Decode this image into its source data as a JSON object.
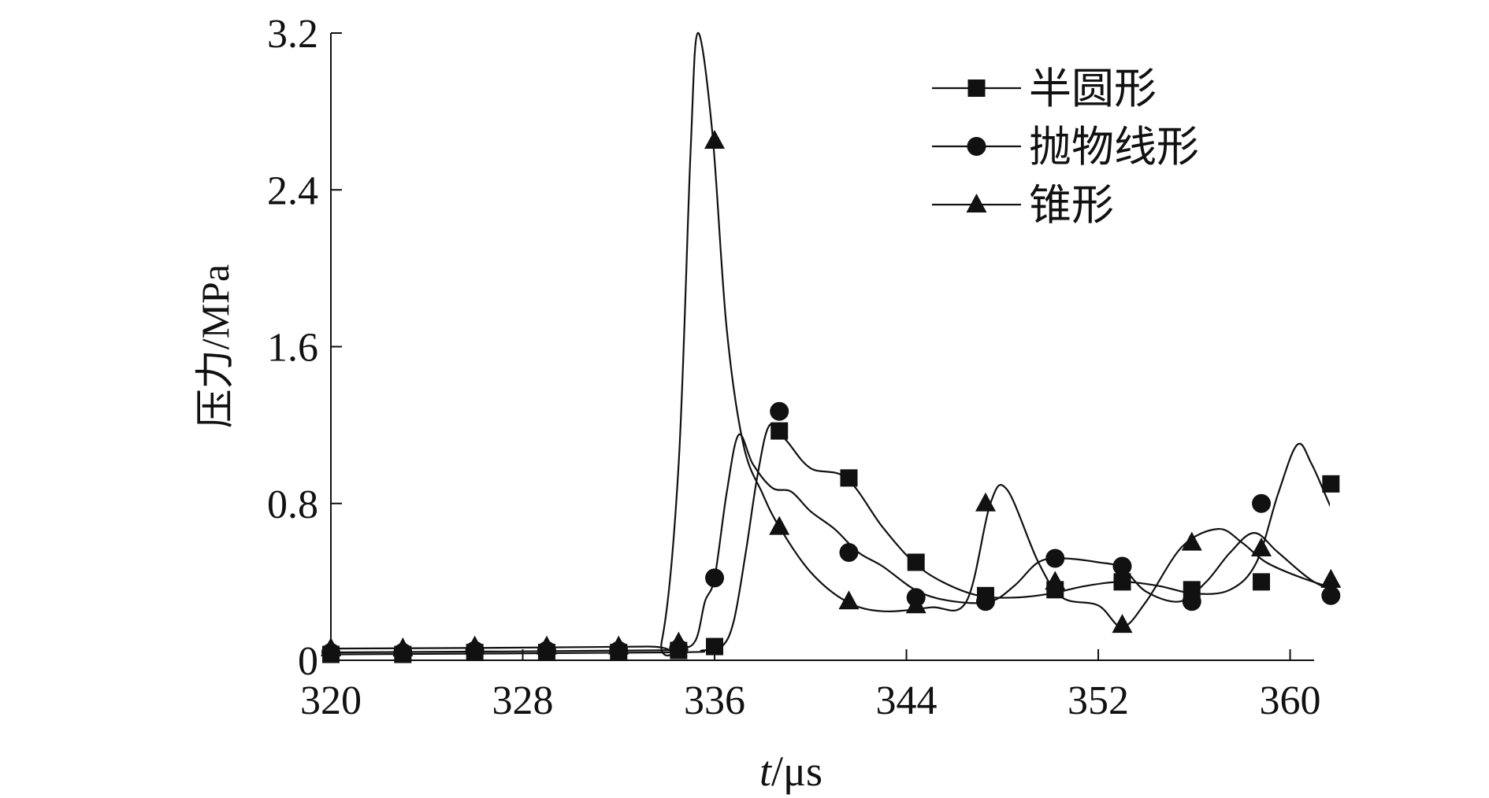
{
  "chart_data": {
    "type": "line",
    "title": "",
    "xlabel_italic": "t",
    "xlabel_rest": "/μs",
    "ylabel": "压力/MPa",
    "xlim": [
      320,
      361
    ],
    "ylim": [
      0,
      3.2
    ],
    "xticks": [
      320,
      328,
      336,
      344,
      352,
      360
    ],
    "yticks": [
      0,
      0.8,
      1.6,
      2.4,
      3.2
    ],
    "ytick_labels": [
      "0",
      "0.8",
      "1.6",
      "2.4",
      "3.2"
    ],
    "legend_position": "top-right",
    "series": [
      {
        "name": "半圆形",
        "marker": "square",
        "curve": [
          [
            320,
            0.03
          ],
          [
            334,
            0.04
          ],
          [
            335.5,
            0.05
          ],
          [
            336.3,
            0.07
          ],
          [
            336.8,
            0.2
          ],
          [
            337.3,
            0.55
          ],
          [
            337.8,
            0.95
          ],
          [
            338.3,
            1.2
          ],
          [
            339,
            1.12
          ],
          [
            340,
            0.98
          ],
          [
            341.5,
            0.93
          ],
          [
            343,
            0.68
          ],
          [
            344.3,
            0.5
          ],
          [
            345.5,
            0.4
          ],
          [
            347,
            0.33
          ],
          [
            348.5,
            0.32
          ],
          [
            350,
            0.34
          ],
          [
            351.5,
            0.38
          ],
          [
            353,
            0.4
          ],
          [
            354.5,
            0.38
          ],
          [
            356,
            0.34
          ],
          [
            357.5,
            0.36
          ],
          [
            358.6,
            0.5
          ],
          [
            359.5,
            0.85
          ],
          [
            360.3,
            1.1
          ],
          [
            360.9,
            1.0
          ],
          [
            361.7,
            0.78
          ],
          [
            362.5,
            0.58
          ]
        ],
        "markers": [
          [
            320,
            0.03
          ],
          [
            323,
            0.03
          ],
          [
            326,
            0.04
          ],
          [
            329,
            0.04
          ],
          [
            332,
            0.04
          ],
          [
            334.5,
            0.05
          ],
          [
            336,
            0.07
          ],
          [
            338.7,
            1.17
          ],
          [
            341.6,
            0.93
          ],
          [
            344.4,
            0.5
          ],
          [
            347.3,
            0.33
          ],
          [
            350.2,
            0.36
          ],
          [
            353,
            0.4
          ],
          [
            355.9,
            0.36
          ],
          [
            358.8,
            0.4
          ],
          [
            361.7,
            0.9
          ]
        ]
      },
      {
        "name": "抛物线形",
        "marker": "circle",
        "curve": [
          [
            320,
            0.04
          ],
          [
            333,
            0.05
          ],
          [
            334.5,
            0.06
          ],
          [
            335.2,
            0.1
          ],
          [
            335.6,
            0.3
          ],
          [
            336,
            0.42
          ],
          [
            336.5,
            0.85
          ],
          [
            337,
            1.15
          ],
          [
            337.6,
            1.0
          ],
          [
            338.4,
            0.88
          ],
          [
            339.2,
            0.86
          ],
          [
            340,
            0.76
          ],
          [
            341,
            0.67
          ],
          [
            342,
            0.55
          ],
          [
            343,
            0.48
          ],
          [
            344.5,
            0.35
          ],
          [
            346,
            0.3
          ],
          [
            347.5,
            0.3
          ],
          [
            348.5,
            0.38
          ],
          [
            349.5,
            0.5
          ],
          [
            350.5,
            0.52
          ],
          [
            352,
            0.5
          ],
          [
            353,
            0.47
          ],
          [
            354,
            0.35
          ],
          [
            355.4,
            0.3
          ],
          [
            356.5,
            0.4
          ],
          [
            357.5,
            0.55
          ],
          [
            358.5,
            0.65
          ],
          [
            359.5,
            0.55
          ],
          [
            361,
            0.4
          ],
          [
            362.5,
            0.33
          ]
        ],
        "markers": [
          [
            320,
            0.04
          ],
          [
            323,
            0.04
          ],
          [
            326,
            0.05
          ],
          [
            329,
            0.05
          ],
          [
            332,
            0.05
          ],
          [
            334.5,
            0.06
          ],
          [
            336,
            0.42
          ],
          [
            338.7,
            1.27
          ],
          [
            341.6,
            0.55
          ],
          [
            344.4,
            0.32
          ],
          [
            347.3,
            0.3
          ],
          [
            350.2,
            0.52
          ],
          [
            353,
            0.48
          ],
          [
            355.9,
            0.3
          ],
          [
            358.8,
            0.8
          ],
          [
            361.7,
            0.33
          ]
        ]
      },
      {
        "name": "锥形",
        "marker": "triangle",
        "curve": [
          [
            320,
            0.06
          ],
          [
            333,
            0.07
          ],
          [
            333.8,
            0.1
          ],
          [
            334.5,
            1.0
          ],
          [
            335,
            2.6
          ],
          [
            335.3,
            3.2
          ],
          [
            335.9,
            2.7
          ],
          [
            336.5,
            1.7
          ],
          [
            337.2,
            1.1
          ],
          [
            338,
            0.85
          ],
          [
            338.7,
            0.68
          ],
          [
            340,
            0.45
          ],
          [
            341.5,
            0.3
          ],
          [
            343,
            0.25
          ],
          [
            345,
            0.27
          ],
          [
            346.5,
            0.3
          ],
          [
            347.5,
            0.8
          ],
          [
            348.2,
            0.87
          ],
          [
            349.5,
            0.5
          ],
          [
            350.5,
            0.32
          ],
          [
            352,
            0.28
          ],
          [
            353,
            0.17
          ],
          [
            354,
            0.3
          ],
          [
            355.5,
            0.58
          ],
          [
            357,
            0.67
          ],
          [
            358,
            0.6
          ],
          [
            359,
            0.5
          ],
          [
            360.5,
            0.42
          ],
          [
            362.5,
            0.34
          ]
        ],
        "markers": [
          [
            320,
            0.06
          ],
          [
            323,
            0.06
          ],
          [
            326,
            0.07
          ],
          [
            329,
            0.07
          ],
          [
            332,
            0.07
          ],
          [
            334.5,
            0.09
          ],
          [
            336,
            2.65
          ],
          [
            338.7,
            0.68
          ],
          [
            341.6,
            0.3
          ],
          [
            344.4,
            0.28
          ],
          [
            347.3,
            0.8
          ],
          [
            350.2,
            0.4
          ],
          [
            353,
            0.18
          ],
          [
            355.9,
            0.6
          ],
          [
            358.8,
            0.57
          ],
          [
            361.7,
            0.41
          ]
        ]
      }
    ]
  }
}
